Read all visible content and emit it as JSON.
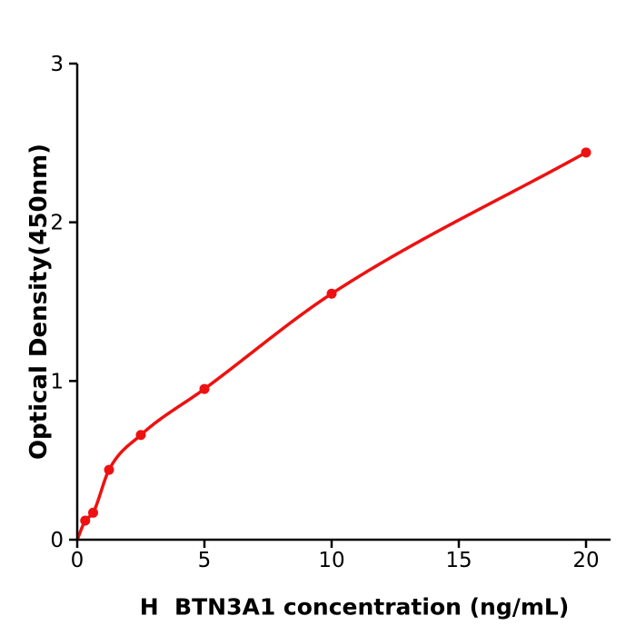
{
  "figure": {
    "background": "#ffffff",
    "text_color": "#000000"
  },
  "chart_data": {
    "type": "scatter",
    "title": "",
    "xlabel": "H  BTN3A1 concentration (ng/mL)",
    "ylabel": "Optical Density(450nm)",
    "x": [
      0.313,
      0.625,
      1.25,
      2.5,
      5,
      10,
      20
    ],
    "y": [
      0.12,
      0.17,
      0.44,
      0.66,
      0.95,
      1.55,
      2.44
    ],
    "fit_curve": {
      "type": "smooth-through-points",
      "start": [
        0,
        0
      ]
    },
    "xlim": [
      0,
      21
    ],
    "ylim": [
      0,
      3
    ],
    "xticks": [
      0,
      5,
      10,
      15,
      20
    ],
    "yticks": [
      0,
      1,
      2,
      3
    ],
    "grid": false,
    "legend": null,
    "marker_color": "#ee1111",
    "line_color": "#ee1111",
    "axis_color": "#000000"
  }
}
